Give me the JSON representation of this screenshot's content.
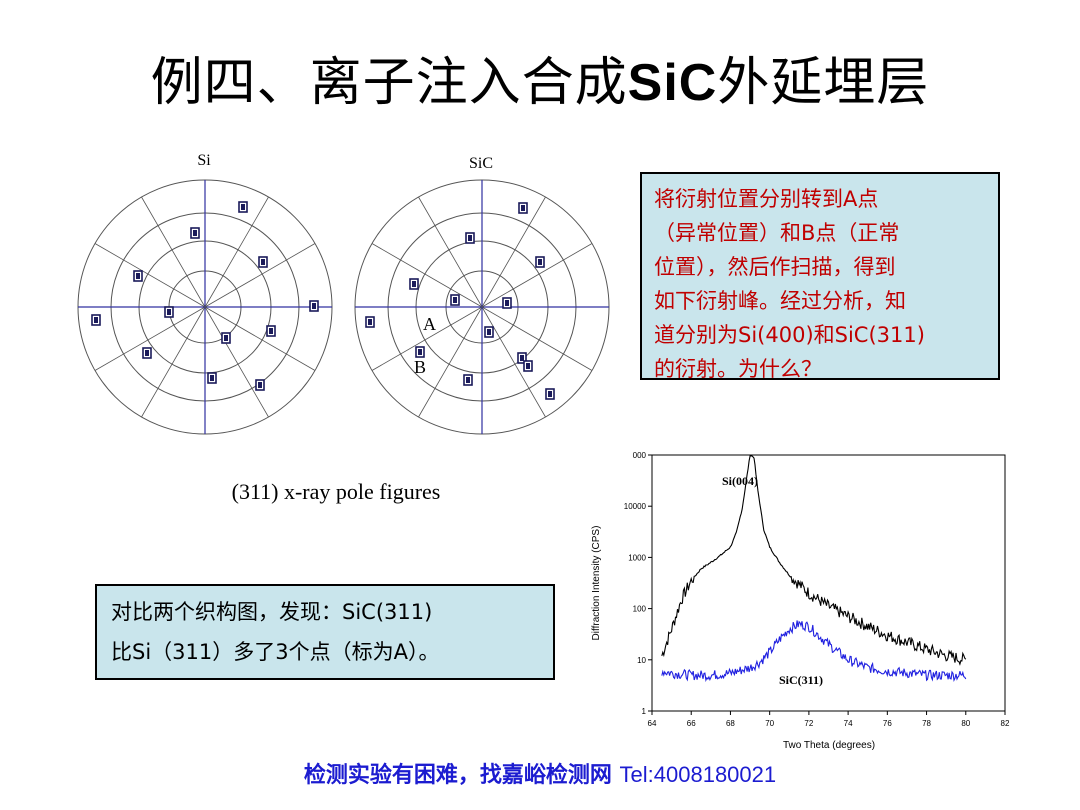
{
  "title": {
    "cn_prefix": "例四、离子注入合成",
    "latin": "SiC",
    "cn_suffix": "外延埋层"
  },
  "pole_figures": {
    "left_label": "Si",
    "right_label": "SiC",
    "point_a": "A",
    "point_b": "B",
    "caption": "(311) x-ray pole figures"
  },
  "box_right": {
    "lines": [
      "将衍射位置分别转到A点",
      "（异常位置）和B点（正常",
      "位置），然后作扫描，得到",
      "如下衍射峰。经过分析，知",
      "道分别为Si(400)和SiC(311)",
      "的衍射。为什么？"
    ]
  },
  "box_left": {
    "lines": [
      "对比两个织构图，发现：SiC(311)",
      "比Si（311）多了3个点（标为A）。"
    ]
  },
  "footer": {
    "text_cn": "检测实验有困难，找嘉峪检测网 ",
    "text_latin": "Tel:4008180021"
  },
  "colors": {
    "accent_red": "#c00000",
    "box_bg": "#c9e5ec",
    "footer_blue": "#1c1cd0",
    "series_blue": "#2020e0"
  },
  "chart_data": {
    "type": "line",
    "xlabel": "Two Theta (degrees)",
    "ylabel": "Diffraction Intensity (CPS)",
    "y_scale": "log",
    "xlim": [
      64,
      82
    ],
    "ylim": [
      1,
      100000
    ],
    "x_ticks": [
      "64",
      "66",
      "68",
      "70",
      "72",
      "74",
      "76",
      "78",
      "80",
      "82"
    ],
    "y_ticks": [
      "1",
      "10",
      "100",
      "1000",
      "10000",
      "000"
    ],
    "series": [
      {
        "name": "Si(004)",
        "color": "#000000",
        "x": [
          64.5,
          65.0,
          65.5,
          66.0,
          66.5,
          67.0,
          67.5,
          68.0,
          68.3,
          68.6,
          68.8,
          69.0,
          69.2,
          69.4,
          69.7,
          70.0,
          70.5,
          71.0,
          71.5,
          72.0,
          73.0,
          74.0,
          75.0,
          76.0,
          77.0,
          78.0,
          79.0,
          80.0
        ],
        "y": [
          12,
          40,
          150,
          350,
          600,
          800,
          1100,
          1600,
          3000,
          9000,
          30000,
          100000,
          90000,
          20000,
          3500,
          1600,
          800,
          450,
          300,
          200,
          110,
          70,
          45,
          30,
          22,
          16,
          12,
          10
        ]
      },
      {
        "name": "SiC(311)",
        "color": "#2020e0",
        "x": [
          64.5,
          65.0,
          66.0,
          67.0,
          68.0,
          69.0,
          69.5,
          70.0,
          70.5,
          71.0,
          71.5,
          72.0,
          72.5,
          73.0,
          74.0,
          75.0,
          76.0,
          77.0,
          78.0,
          79.0,
          80.0
        ],
        "y": [
          6,
          5.5,
          5,
          5,
          5.5,
          7,
          9,
          14,
          25,
          40,
          50,
          45,
          30,
          20,
          10,
          7,
          6,
          5.5,
          5,
          5,
          5
        ]
      }
    ]
  }
}
